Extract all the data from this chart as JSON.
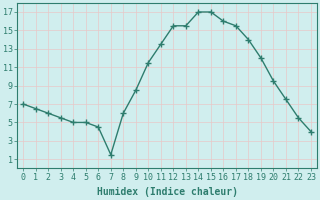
{
  "x": [
    0,
    1,
    2,
    3,
    4,
    5,
    6,
    7,
    8,
    9,
    10,
    11,
    12,
    13,
    14,
    15,
    16,
    17,
    18,
    19,
    20,
    21,
    22,
    23
  ],
  "y": [
    7.0,
    6.5,
    6.0,
    5.5,
    5.0,
    5.0,
    4.5,
    1.5,
    6.0,
    8.5,
    11.5,
    13.5,
    15.5,
    15.5,
    17.0,
    17.0,
    16.0,
    15.5,
    14.0,
    12.0,
    9.5,
    7.5,
    5.5,
    4.0
  ],
  "xlabel": "Humidex (Indice chaleur)",
  "ylim": [
    0,
    18
  ],
  "xlim": [
    -0.5,
    23.5
  ],
  "yticks": [
    1,
    3,
    5,
    7,
    9,
    11,
    13,
    15,
    17
  ],
  "xticks": [
    0,
    1,
    2,
    3,
    4,
    5,
    6,
    7,
    8,
    9,
    10,
    11,
    12,
    13,
    14,
    15,
    16,
    17,
    18,
    19,
    20,
    21,
    22,
    23
  ],
  "line_color": "#2e7d6e",
  "marker": "+",
  "marker_size": 4,
  "bg_color": "#d0eeee",
  "grid_color": "#e8c8c8",
  "xlabel_fontsize": 7,
  "tick_fontsize": 6,
  "linewidth": 1.0
}
